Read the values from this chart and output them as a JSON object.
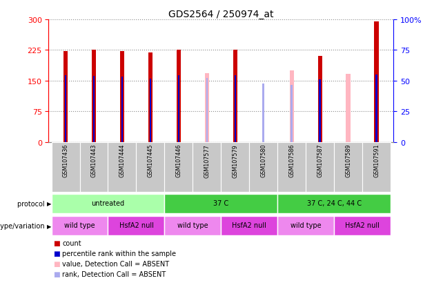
{
  "title": "GDS2564 / 250974_at",
  "samples": [
    "GSM107436",
    "GSM107443",
    "GSM107444",
    "GSM107445",
    "GSM107446",
    "GSM107577",
    "GSM107579",
    "GSM107580",
    "GSM107586",
    "GSM107587",
    "GSM107589",
    "GSM107591"
  ],
  "count_values": [
    222,
    226,
    222,
    219,
    226,
    null,
    226,
    null,
    null,
    210,
    null,
    295
  ],
  "count_absent": [
    null,
    null,
    null,
    null,
    null,
    169,
    null,
    null,
    175,
    null,
    166,
    null
  ],
  "percentile_values": [
    163,
    162,
    160,
    155,
    163,
    null,
    163,
    null,
    null,
    153,
    null,
    165
  ],
  "percentile_absent": [
    null,
    null,
    null,
    null,
    null,
    156,
    null,
    143,
    139,
    null,
    null,
    null
  ],
  "ylim_left": [
    0,
    300
  ],
  "ylim_right": [
    0,
    100
  ],
  "yticks_left": [
    0,
    75,
    150,
    225,
    300
  ],
  "yticks_right": [
    0,
    25,
    50,
    75,
    100
  ],
  "bar_color_count": "#CC0000",
  "bar_color_absent": "#FFB6C1",
  "dot_color_present": "#0000CC",
  "dot_color_absent": "#AAAAEE",
  "background_color": "#FFFFFF"
}
